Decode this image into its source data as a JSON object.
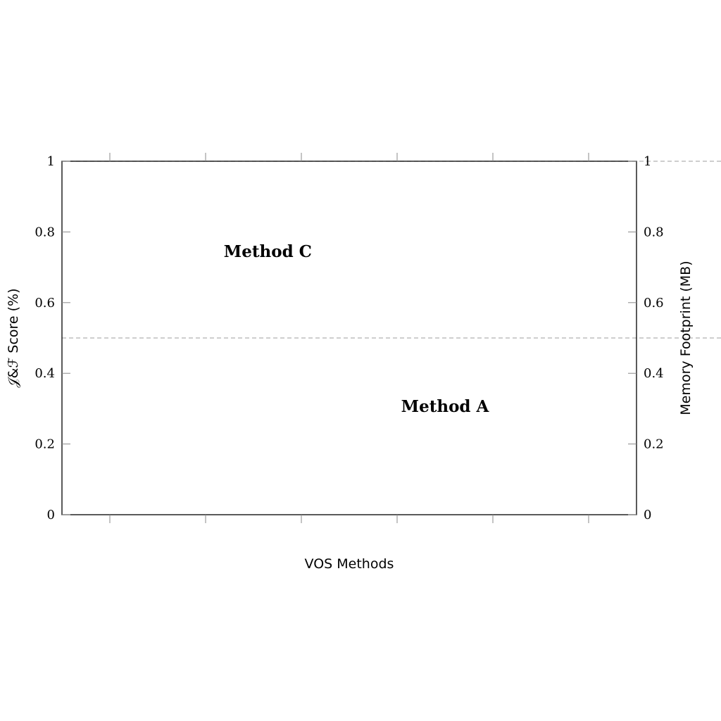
{
  "chart_data": {
    "type": "bar",
    "title": "",
    "xlabel": "VOS Methods",
    "ylabel_left": "𝒥&ℱ Score (%)",
    "ylabel_right": "Memory Footprint (MB)",
    "ylim_left": [
      0,
      1
    ],
    "ylim_right": [
      0,
      1
    ],
    "yticks_left": [
      "0",
      "0.2",
      "0.4",
      "0.6",
      "0.8",
      "1"
    ],
    "yticks_right": [
      "0",
      "0.2",
      "0.4",
      "0.6",
      "0.8",
      "1"
    ],
    "x_tick_count": 6,
    "reference_lines": [
      0.5,
      1.0
    ],
    "annotations": [
      {
        "text": "Method C",
        "x_index": 1.65,
        "y": 0.745
      },
      {
        "text": "Method A",
        "x_index": 3.5,
        "y": 0.307
      }
    ],
    "series": [],
    "grid": false
  }
}
